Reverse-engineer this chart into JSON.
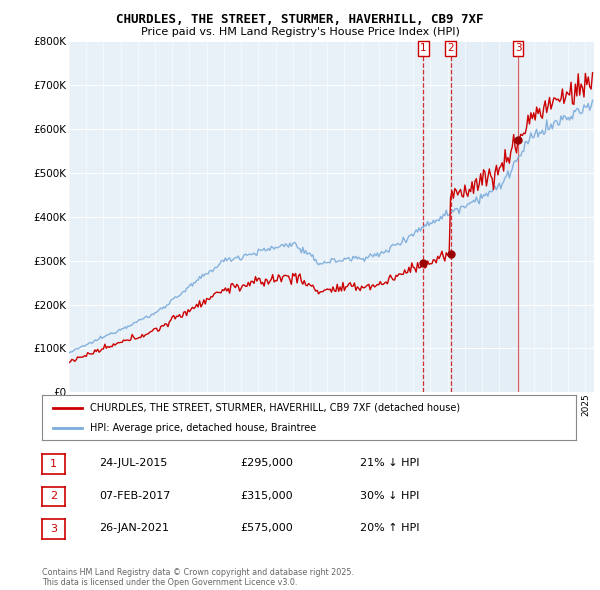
{
  "title": "CHURDLES, THE STREET, STURMER, HAVERHILL, CB9 7XF",
  "subtitle": "Price paid vs. HM Land Registry's House Price Index (HPI)",
  "property_label": "CHURDLES, THE STREET, STURMER, HAVERHILL, CB9 7XF (detached house)",
  "hpi_label": "HPI: Average price, detached house, Braintree",
  "transactions": [
    {
      "num": 1,
      "date": "24-JUL-2015",
      "price": 295000,
      "pct": "21%",
      "dir": "↓",
      "vs": "HPI"
    },
    {
      "num": 2,
      "date": "07-FEB-2017",
      "price": 315000,
      "pct": "30%",
      "dir": "↓",
      "vs": "HPI"
    },
    {
      "num": 3,
      "date": "26-JAN-2021",
      "price": 575000,
      "pct": "20%",
      "dir": "↑",
      "vs": "HPI"
    }
  ],
  "footer": "Contains HM Land Registry data © Crown copyright and database right 2025.\nThis data is licensed under the Open Government Licence v3.0.",
  "property_color": "#cc0000",
  "hpi_color": "#7aabdb",
  "vline_color": "#cc0000",
  "chart_bg": "#e8f0f8",
  "ylim": [
    0,
    800000
  ],
  "yticks": [
    0,
    100000,
    200000,
    300000,
    400000,
    500000,
    600000,
    700000,
    800000
  ],
  "background_color": "#ffffff"
}
